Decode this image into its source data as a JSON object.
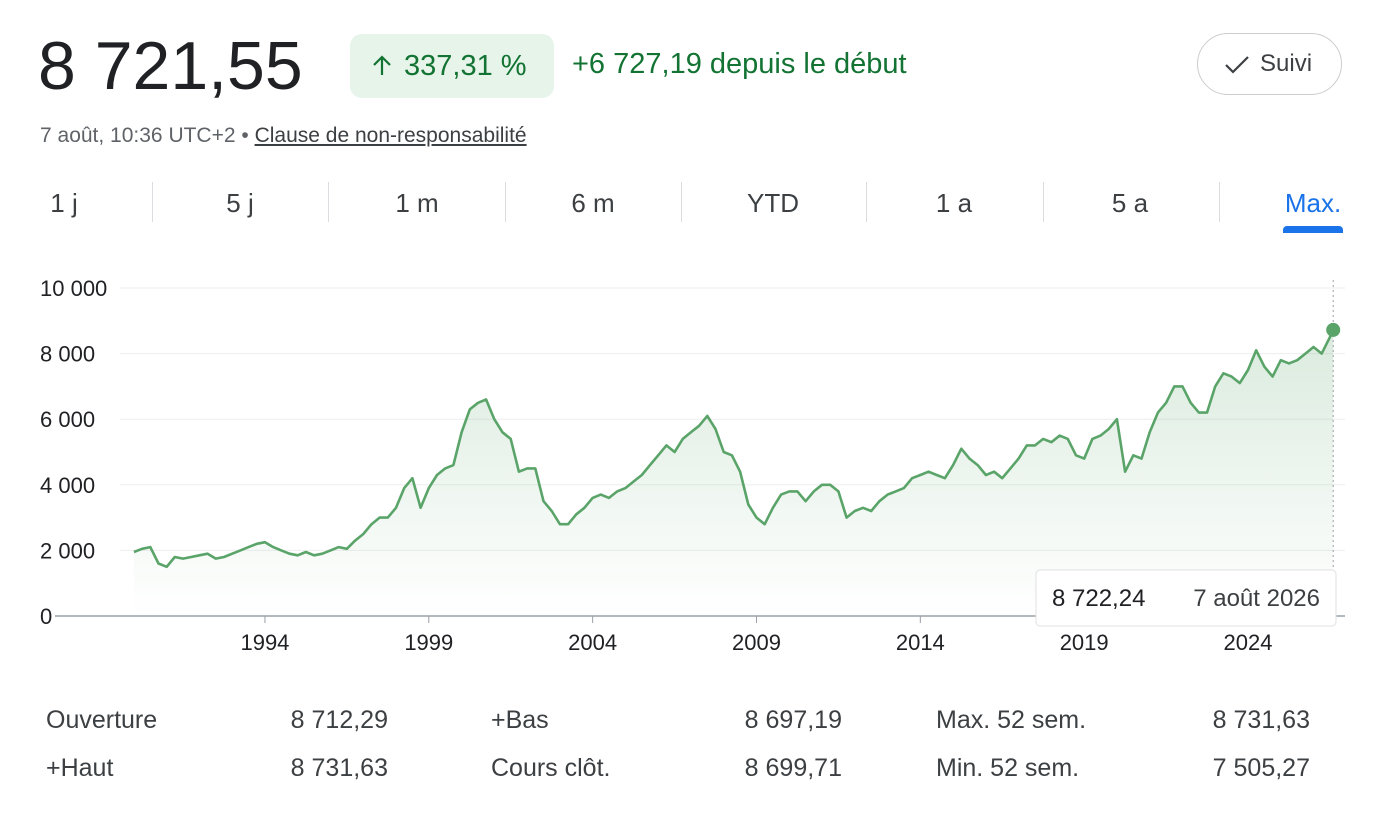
{
  "header": {
    "price": "8 721,55",
    "change_pct": "337,31 %",
    "change_abs": "+6 727,19 depuis le début",
    "follow": "Suivi",
    "timestamp": "7 août, 10:36 UTC+2 •",
    "disclaimer": "Clause de non-responsabilité"
  },
  "tabs": {
    "labels": [
      "1 j",
      "5 j",
      "1 m",
      "6 m",
      "YTD",
      "1 a",
      "5 a",
      "Max."
    ],
    "active": 7
  },
  "chart_data": {
    "type": "line",
    "color": "#5aa469",
    "grid": true,
    "x": [
      1990,
      1990.25,
      1990.5,
      1990.75,
      1991,
      1991.25,
      1991.5,
      1991.75,
      1992,
      1992.25,
      1992.5,
      1992.75,
      1993,
      1993.25,
      1993.5,
      1993.75,
      1994,
      1994.25,
      1994.5,
      1994.75,
      1995,
      1995.25,
      1995.5,
      1995.75,
      1996,
      1996.25,
      1996.5,
      1996.75,
      1997,
      1997.25,
      1997.5,
      1997.75,
      1998,
      1998.25,
      1998.5,
      1998.75,
      1999,
      1999.25,
      1999.5,
      1999.75,
      2000,
      2000.25,
      2000.5,
      2000.75,
      2001,
      2001.25,
      2001.5,
      2001.75,
      2002,
      2002.25,
      2002.5,
      2002.75,
      2003,
      2003.25,
      2003.5,
      2003.75,
      2004,
      2004.25,
      2004.5,
      2004.75,
      2005,
      2005.25,
      2005.5,
      2005.75,
      2006,
      2006.25,
      2006.5,
      2006.75,
      2007,
      2007.25,
      2007.5,
      2007.75,
      2008,
      2008.25,
      2008.5,
      2008.75,
      2009,
      2009.25,
      2009.5,
      2009.75,
      2010,
      2010.25,
      2010.5,
      2010.75,
      2011,
      2011.25,
      2011.5,
      2011.75,
      2012,
      2012.25,
      2012.5,
      2012.75,
      2013,
      2013.25,
      2013.5,
      2013.75,
      2014,
      2014.25,
      2014.5,
      2014.75,
      2015,
      2015.25,
      2015.5,
      2015.75,
      2016,
      2016.25,
      2016.5,
      2016.75,
      2017,
      2017.25,
      2017.5,
      2017.75,
      2018,
      2018.25,
      2018.5,
      2018.75,
      2019,
      2019.25,
      2019.5,
      2019.75,
      2020,
      2020.25,
      2020.5,
      2020.75,
      2021,
      2021.25,
      2021.5,
      2021.75,
      2022,
      2022.25,
      2022.5,
      2022.75,
      2023,
      2023.25,
      2023.5,
      2023.75,
      2024,
      2024.25,
      2024.5,
      2024.75,
      2025,
      2025.25,
      2025.5,
      2025.75,
      2026,
      2026.25,
      2026.5,
      2026.6
    ],
    "values": [
      1950,
      2050,
      2100,
      1600,
      1500,
      1800,
      1750,
      1800,
      1850,
      1900,
      1750,
      1800,
      1900,
      2000,
      2100,
      2200,
      2250,
      2100,
      2000,
      1900,
      1850,
      1950,
      1850,
      1900,
      2000,
      2100,
      2050,
      2300,
      2500,
      2800,
      3000,
      3000,
      3300,
      3900,
      4200,
      3300,
      3900,
      4300,
      4500,
      4600,
      5600,
      6300,
      6500,
      6600,
      6000,
      5600,
      5400,
      4400,
      4500,
      4500,
      3500,
      3200,
      2800,
      2800,
      3100,
      3300,
      3600,
      3700,
      3600,
      3800,
      3900,
      4100,
      4300,
      4600,
      4900,
      5200,
      5000,
      5400,
      5600,
      5800,
      6100,
      5700,
      5000,
      4900,
      4400,
      3400,
      3000,
      2800,
      3300,
      3700,
      3800,
      3800,
      3500,
      3800,
      4000,
      4000,
      3800,
      3000,
      3200,
      3300,
      3200,
      3500,
      3700,
      3800,
      3900,
      4200,
      4300,
      4400,
      4300,
      4200,
      4600,
      5100,
      4800,
      4600,
      4300,
      4400,
      4200,
      4500,
      4800,
      5200,
      5200,
      5400,
      5300,
      5500,
      5400,
      4900,
      4800,
      5400,
      5500,
      5700,
      6000,
      4400,
      4900,
      4800,
      5600,
      6200,
      6500,
      7000,
      7000,
      6500,
      6200,
      6200,
      7000,
      7400,
      7300,
      7100,
      7500,
      8100,
      7600,
      7300,
      7800,
      7700,
      7800,
      8000,
      8200,
      8000,
      8500,
      8700
    ],
    "xlim": [
      1987.44,
      2026.96
    ],
    "xticks": [
      1994,
      1999,
      2004,
      2009,
      2014,
      2019,
      2024
    ],
    "ylim": [
      0,
      10000
    ],
    "yticks": [
      0,
      {
        "value": 2000,
        "label": "2 000"
      },
      {
        "value": 4000,
        "label": "4 000"
      },
      {
        "value": 6000,
        "label": "6 000"
      },
      {
        "value": 8000,
        "label": "8 000"
      },
      {
        "value": 10000,
        "label": "10 000"
      }
    ],
    "tooltip": {
      "value": 8722.24,
      "label": "8 722,24",
      "date": "7 août 2026"
    }
  },
  "stats": {
    "rows": [
      [
        "Ouverture",
        "8 712,29",
        "+Bas",
        "8 697,19",
        "Max. 52 sem.",
        "8 731,63"
      ],
      [
        "+Haut",
        "8 731,63",
        "Cours clôt.",
        "8 699,71",
        "Min. 52 sem.",
        "7 505,27"
      ]
    ]
  }
}
